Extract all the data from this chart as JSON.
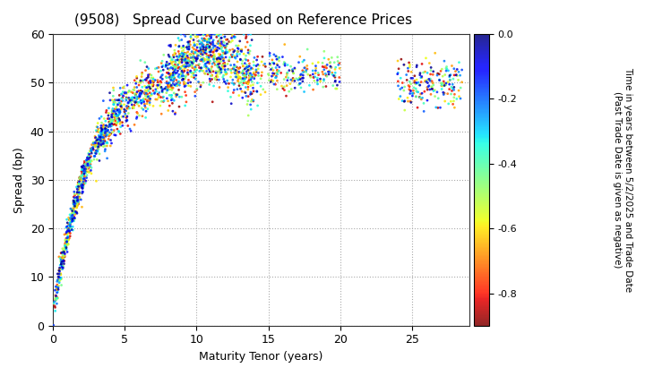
{
  "title": "(9508)   Spread Curve based on Reference Prices",
  "xlabel": "Maturity Tenor (years)",
  "ylabel": "Spread (bp)",
  "colorbar_label": "Time in years between 5/2/2025 and Trade Date\n(Past Trade Date is given as negative)",
  "colorbar_ticks": [
    0.0,
    -0.2,
    -0.4,
    -0.6,
    -0.8
  ],
  "xlim": [
    0,
    29
  ],
  "ylim": [
    0,
    60
  ],
  "xticks": [
    0,
    5,
    10,
    15,
    20,
    25
  ],
  "yticks": [
    0,
    10,
    20,
    30,
    40,
    50,
    60
  ],
  "cmap": "jet_r",
  "cmin": -0.9,
  "cmax": 0.0,
  "seed": 42,
  "background": "#ffffff",
  "grid_color": "#aaaaaa",
  "grid_style": "dotted"
}
